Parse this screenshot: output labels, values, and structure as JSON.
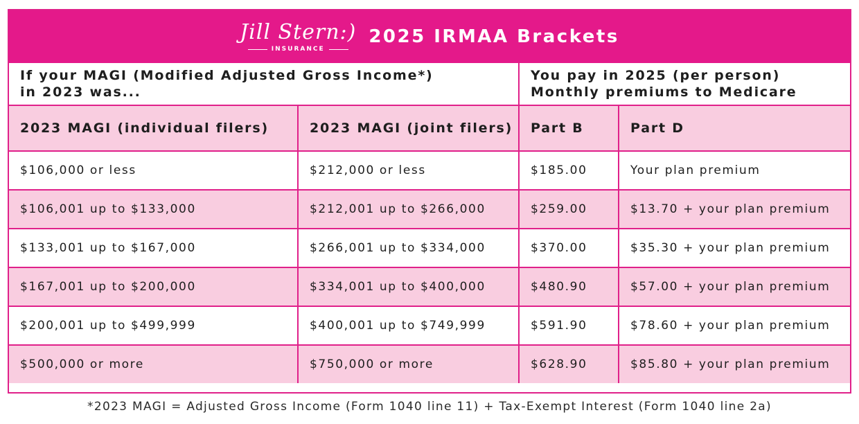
{
  "header": {
    "logo_script": "Jill Stern:)",
    "logo_sub": "INSURANCE",
    "title": "2025 IRMAA Brackets"
  },
  "intro": {
    "left_line1": "If your MAGI (Modified Adjusted Gross Income*)",
    "left_line2": "in 2023 was...",
    "right_line1": "You pay in 2025 (per person)",
    "right_line2": "Monthly premiums to Medicare"
  },
  "columns": {
    "individual": "2023 MAGI (individual filers)",
    "joint": "2023 MAGI (joint filers)",
    "part_b": "Part B",
    "part_d": "Part D"
  },
  "rows": [
    {
      "individual": "$106,000 or less",
      "joint": "$212,000 or less",
      "part_b": "$185.00",
      "part_d": "Your plan premium"
    },
    {
      "individual": "$106,001 up to $133,000",
      "joint": "$212,001 up to $266,000",
      "part_b": "$259.00",
      "part_d": "$13.70 + your plan premium"
    },
    {
      "individual": "$133,001 up to $167,000",
      "joint": "$266,001 up to $334,000",
      "part_b": "$370.00",
      "part_d": "$35.30 + your plan premium"
    },
    {
      "individual": "$167,001 up to $200,000",
      "joint": "$334,001 up to $400,000",
      "part_b": "$480.90",
      "part_d": "$57.00 + your plan premium"
    },
    {
      "individual": "$200,001 up to $499,999",
      "joint": "$400,001 up to $749,999",
      "part_b": "$591.90",
      "part_d": "$78.60 + your plan premium"
    },
    {
      "individual": "$500,000 or more",
      "joint": "$750,000 or more",
      "part_b": "$628.90",
      "part_d": "$85.80 + your plan premium"
    }
  ],
  "footnote": "*2023 MAGI = Adjusted Gross Income (Form 1040 line 11) + Tax-Exempt Interest (Form 1040 line 2a)",
  "colors": {
    "brand_pink": "#e4198a",
    "row_tint": "#f9cde0"
  }
}
